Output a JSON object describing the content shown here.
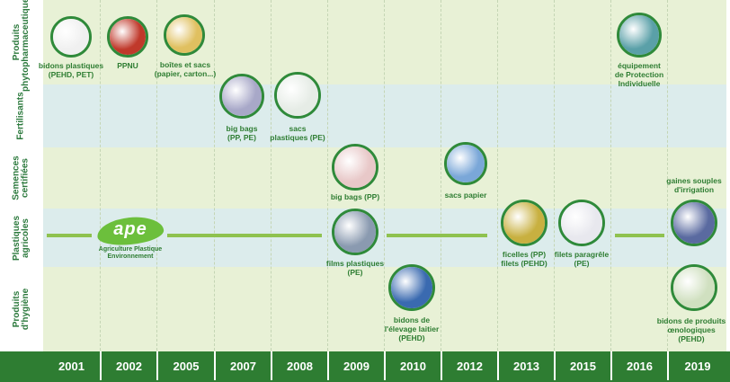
{
  "rows": [
    {
      "label": "Produits\nphytopharmaceutiques"
    },
    {
      "label": "Fertilisants"
    },
    {
      "label": "Semences\ncertifiées"
    },
    {
      "label": "Plastiques\nagricoles"
    },
    {
      "label": "Produits\nd'hygiène"
    }
  ],
  "years": [
    "2001",
    "2002",
    "2005",
    "2007",
    "2008",
    "2009",
    "2010",
    "2012",
    "2013",
    "2015",
    "2016",
    "2019"
  ],
  "logo": {
    "word": "ape",
    "subtitle": "Agriculture Plastique\nEnvironnement"
  },
  "items": [
    {
      "caption": "bidons plastiques\n(PEHD, PET)",
      "photo": "cans",
      "color": "#f0f0f0"
    },
    {
      "caption": "PPNU",
      "photo": "products",
      "color": "#c0392b"
    },
    {
      "caption": "boîtes et sacs\n(papier, carton...)",
      "photo": "boxes",
      "color": "#e0c060"
    },
    {
      "caption": "big bags\n(PP, PE)",
      "photo": "bigbags",
      "color": "#a8a8c8"
    },
    {
      "caption": "sacs\nplastiques (PE)",
      "photo": "sacks",
      "color": "#e6ece6"
    },
    {
      "caption": "big bags (PP)",
      "photo": "bigbags-pink",
      "color": "#e8c8c8"
    },
    {
      "caption": "sacs papier",
      "photo": "paper-sacks",
      "color": "#7aa7d8"
    },
    {
      "caption": "équipement\nde Protection\nIndividuelle",
      "photo": "ppe",
      "color": "#5aa0a8"
    },
    {
      "caption": "gaines souples\nd'irrigation",
      "photo": "hoses",
      "color": "#5a6aa0"
    },
    {
      "caption": "films plastiques\n(PE)",
      "photo": "films",
      "color": "#8a9ab0"
    },
    {
      "caption": "ficelles (PP)\nfilets (PEHD)",
      "photo": "twine",
      "color": "#c8b040"
    },
    {
      "caption": "filets paragrêle\n(PE)",
      "photo": "hail-nets",
      "color": "#e8e8ee"
    },
    {
      "caption": "bidons de\nl'élevage laitier\n(PEHD)",
      "photo": "dairy-cans",
      "color": "#3a6ab0"
    },
    {
      "caption": "bidons de produits\nœnologiques\n(PEHD)",
      "photo": "oeno-cans",
      "color": "#d0e0c0"
    }
  ]
}
